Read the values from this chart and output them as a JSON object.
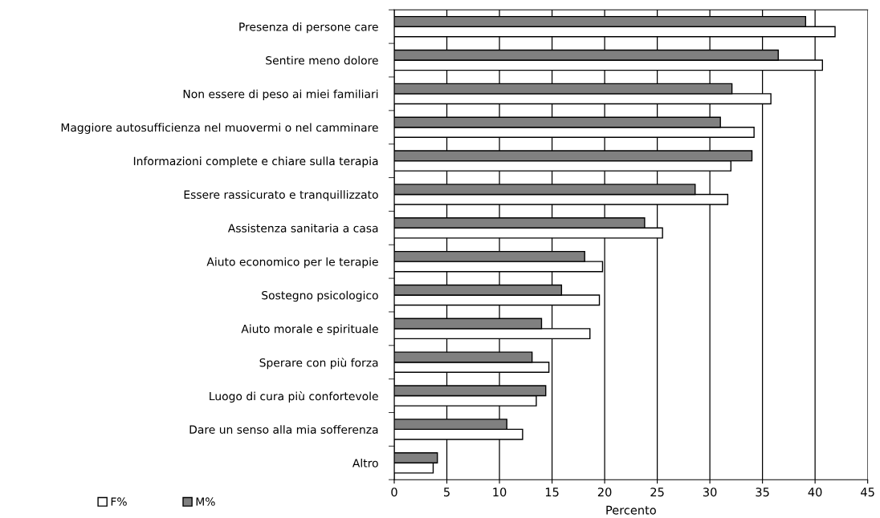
{
  "chart_data": {
    "type": "bar",
    "orientation": "horizontal",
    "xlabel": "Percento",
    "categories": [
      "Presenza di persone care",
      "Sentire meno dolore",
      "Non essere di peso ai miei familiari",
      "Maggiore autosufficienza nel muovermi o nel camminare",
      "Informazioni complete e chiare sulla terapia",
      "Essere rassicurato e tranquillizzato",
      "Assistenza sanitaria a casa",
      "Aiuto economico per le terapie",
      "Sostegno psicologico",
      "Aiuto morale e spirituale",
      "Sperare con più forza",
      "Luogo di cura più confortevole",
      "Dare un senso alla mia sofferenza",
      "Altro"
    ],
    "series": [
      {
        "name": "F%",
        "color": "#ffffff",
        "values": [
          41.9,
          40.7,
          35.8,
          34.2,
          32.0,
          31.7,
          25.5,
          19.8,
          19.5,
          18.6,
          14.7,
          13.5,
          12.2,
          3.7
        ]
      },
      {
        "name": "M%",
        "color": "#808080",
        "values": [
          39.1,
          36.5,
          32.1,
          31.0,
          34.0,
          28.6,
          23.8,
          18.1,
          15.9,
          14.0,
          13.1,
          14.4,
          10.7,
          4.1
        ]
      }
    ],
    "xlim": [
      0,
      45
    ],
    "xticks": [
      0,
      5,
      10,
      15,
      20,
      25,
      30,
      35,
      40,
      45
    ],
    "grid": "x",
    "legend": "bottom left"
  }
}
